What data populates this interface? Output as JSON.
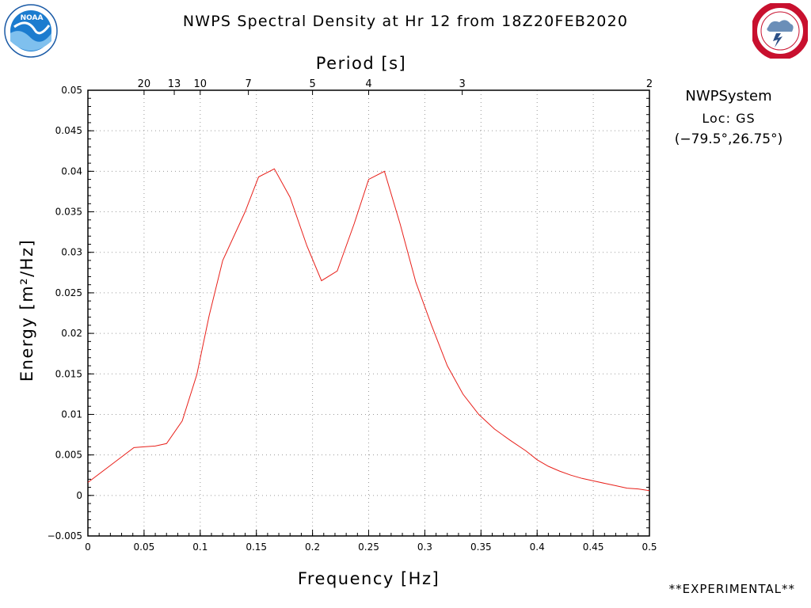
{
  "header": {
    "title": "NWPS Spectral Density at Hr 12 from 18Z20FEB2020",
    "logo_left_text": "NOAA",
    "logo_right_text": "NATIONAL WEATHER SERVICE"
  },
  "info": {
    "system": "NWPSystem",
    "location": "Loc: GS",
    "coords": "(−79.5°,26.75°)"
  },
  "footer": {
    "experimental": "**EXPERIMENTAL**"
  },
  "colors": {
    "series": "#e8201a",
    "grid": "#9a9a9a",
    "axis": "#000000"
  },
  "chart_data": {
    "type": "line",
    "title": "NWPS Spectral Density at Hr 12 from 18Z20FEB2020",
    "xlabel": "Frequency [Hz]",
    "ylabel": "Energy [m²/Hz]",
    "top_axis_label": "Period [s]",
    "xlim": [
      0,
      0.5
    ],
    "ylim": [
      -0.005,
      0.05
    ],
    "x_ticks": [
      0,
      0.05,
      0.1,
      0.15,
      0.2,
      0.25,
      0.3,
      0.35,
      0.4,
      0.45,
      0.5
    ],
    "x_tick_labels": [
      "0",
      "0.05",
      "0.1",
      "0.15",
      "0.2",
      "0.25",
      "0.3",
      "0.35",
      "0.4",
      "0.45",
      "0.5"
    ],
    "y_ticks": [
      -0.005,
      0,
      0.005,
      0.01,
      0.015,
      0.02,
      0.025,
      0.03,
      0.035,
      0.04,
      0.045,
      0.05
    ],
    "y_tick_labels": [
      "−0.005",
      "0",
      "0.005",
      "0.01",
      "0.015",
      "0.02",
      "0.025",
      "0.03",
      "0.035",
      "0.04",
      "0.045",
      "0.05"
    ],
    "top_ticks": [
      {
        "label": "20",
        "freq": 0.05
      },
      {
        "label": "13",
        "freq": 0.0769
      },
      {
        "label": "10",
        "freq": 0.1
      },
      {
        "label": "7",
        "freq": 0.1429
      },
      {
        "label": "5",
        "freq": 0.2
      },
      {
        "label": "4",
        "freq": 0.25
      },
      {
        "label": "3",
        "freq": 0.3333
      },
      {
        "label": "2",
        "freq": 0.5
      }
    ],
    "grid": true,
    "series": [
      {
        "x": [
          0,
          0.02,
          0.041,
          0.05,
          0.06,
          0.07,
          0.084,
          0.097,
          0.108,
          0.12,
          0.14,
          0.152,
          0.166,
          0.18,
          0.195,
          0.208,
          0.222,
          0.237,
          0.25,
          0.264,
          0.278,
          0.292,
          0.306,
          0.32,
          0.334,
          0.348,
          0.362,
          0.376,
          0.39,
          0.4,
          0.41,
          0.42,
          0.43,
          0.44,
          0.45,
          0.46,
          0.47,
          0.48,
          0.49,
          0.5
        ],
        "y": [
          0.0016,
          0.0037,
          0.0059,
          0.006,
          0.0061,
          0.0064,
          0.0092,
          0.0149,
          0.0222,
          0.029,
          0.035,
          0.0393,
          0.0403,
          0.0368,
          0.0308,
          0.0265,
          0.0277,
          0.0335,
          0.039,
          0.04,
          0.0335,
          0.0263,
          0.021,
          0.016,
          0.0125,
          0.01,
          0.0082,
          0.0068,
          0.0055,
          0.0044,
          0.0036,
          0.003,
          0.0025,
          0.0021,
          0.0018,
          0.0015,
          0.0012,
          0.0009,
          0.0008,
          0.0006
        ]
      }
    ]
  }
}
